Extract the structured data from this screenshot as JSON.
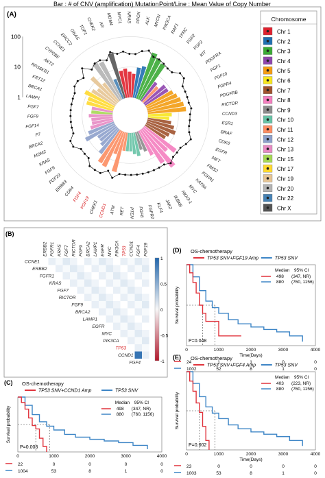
{
  "panelA": {
    "label": "(A)",
    "header_left": "Bar : # of CNV (amplification) Mutation",
    "header_right": "Point/Line : Mean Value of Copy Number",
    "y_ticks": [
      "100",
      "10",
      "1"
    ],
    "legend_title": "Chromosome",
    "legend": [
      {
        "name": "Chr 1",
        "color": "#e0212e"
      },
      {
        "name": "Chr 2",
        "color": "#1f6fb0"
      },
      {
        "name": "Chr 3",
        "color": "#3aaa35"
      },
      {
        "name": "Chr 4",
        "color": "#8e44ad"
      },
      {
        "name": "Chr 5",
        "color": "#f39c12"
      },
      {
        "name": "Chr 6",
        "color": "#f7e61e"
      },
      {
        "name": "Chr 7",
        "color": "#a0522d"
      },
      {
        "name": "Chr 8",
        "color": "#f47ebf"
      },
      {
        "name": "Chr 9",
        "color": "#8c8c8c"
      },
      {
        "name": "Chr 10",
        "color": "#66c2a5"
      },
      {
        "name": "Chr 11",
        "color": "#fc8d62"
      },
      {
        "name": "Chr 12",
        "color": "#8da0cb"
      },
      {
        "name": "Chr 13",
        "color": "#e78ac3"
      },
      {
        "name": "Chr 15",
        "color": "#a6d854"
      },
      {
        "name": "Chr 17",
        "color": "#ffd92f"
      },
      {
        "name": "Chr 19",
        "color": "#e5c494"
      },
      {
        "name": "Chr 20",
        "color": "#b3b3b3"
      },
      {
        "name": "Chr 22",
        "color": "#4682b4"
      },
      {
        "name": "Chr X",
        "color": "#555555"
      }
    ]
  },
  "chart_data": [
    {
      "type": "bar",
      "panel": "A",
      "subtype": "radial-bar-with-line",
      "bar_meaning": "# of CNV (amplification) Mutation",
      "line_meaning": "Mean Value of Copy Number",
      "radial_scale": "log",
      "radial_ticks": [
        1,
        10,
        100
      ],
      "genes": [
        {
          "gene": "AR",
          "chr": "Chr X",
          "bar": 35,
          "cn": 6.5
        },
        {
          "gene": "MDM4",
          "chr": "Chr 1",
          "bar": 8,
          "cn": 5
        },
        {
          "gene": "MYCL",
          "chr": "Chr 1",
          "bar": 9,
          "cn": 5.5
        },
        {
          "gene": "NRAS",
          "chr": "Chr 1",
          "bar": 7,
          "cn": 4.5
        },
        {
          "gene": "PPOX",
          "chr": "Chr 1",
          "bar": 6,
          "cn": 4.5
        },
        {
          "gene": "ALK",
          "chr": "Chr 2",
          "bar": 10,
          "cn": 6
        },
        {
          "gene": "MYCN",
          "chr": "Chr 2",
          "bar": 12,
          "cn": 7
        },
        {
          "gene": "PIK3CA",
          "chr": "Chr 3",
          "bar": 40,
          "cn": 5
        },
        {
          "gene": "RAF1",
          "chr": "Chr 3",
          "bar": 30,
          "cn": 5
        },
        {
          "gene": "TFRC",
          "chr": "Chr 3",
          "bar": 25,
          "cn": 4.5
        },
        {
          "gene": "FGF2",
          "chr": "Chr 4",
          "bar": 6,
          "cn": 4
        },
        {
          "gene": "FGF3",
          "chr": "Chr 11",
          "bar": 5,
          "cn": 4
        },
        {
          "gene": "KIT",
          "chr": "Chr 4",
          "bar": 8,
          "cn": 6
        },
        {
          "gene": "PDGFRA",
          "chr": "Chr 4",
          "bar": 8,
          "cn": 6
        },
        {
          "gene": "FGF1",
          "chr": "Chr 5",
          "bar": 10,
          "cn": 4
        },
        {
          "gene": "FGF10",
          "chr": "Chr 5",
          "bar": 12,
          "cn": 4
        },
        {
          "gene": "FGFR4",
          "chr": "Chr 5",
          "bar": 14,
          "cn": 4
        },
        {
          "gene": "PDGFRB",
          "chr": "Chr 5",
          "bar": 16,
          "cn": 4
        },
        {
          "gene": "RICTOR",
          "chr": "Chr 5",
          "bar": 18,
          "cn": 4.5
        },
        {
          "gene": "CCND3",
          "chr": "Chr 6",
          "bar": 6,
          "cn": 4
        },
        {
          "gene": "ESR1",
          "chr": "Chr 6",
          "bar": 5,
          "cn": 4
        },
        {
          "gene": "BRAF",
          "chr": "Chr 7",
          "bar": 6,
          "cn": 4
        },
        {
          "gene": "CDK6",
          "chr": "Chr 7",
          "bar": 8,
          "cn": 4.5
        },
        {
          "gene": "EGFR",
          "chr": "Chr 7",
          "bar": 10,
          "cn": 6
        },
        {
          "gene": "MET",
          "chr": "Chr 7",
          "bar": 7,
          "cn": 5
        },
        {
          "gene": "PMS2",
          "chr": "Chr 7",
          "bar": 6,
          "cn": 4
        },
        {
          "gene": "FGFR1",
          "chr": "Chr 8",
          "bar": 20,
          "cn": 4
        },
        {
          "gene": "KAT6A",
          "chr": "Chr 8",
          "bar": 12,
          "cn": 4
        },
        {
          "gene": "MYC",
          "chr": "Chr 8",
          "bar": 40,
          "cn": 5
        },
        {
          "gene": "NKX3-1",
          "chr": "Chr 8",
          "bar": 20,
          "cn": 4
        },
        {
          "gene": "IKBKB",
          "chr": "Chr 8",
          "bar": 8,
          "cn": 4
        },
        {
          "gene": "JAK2",
          "chr": "Chr 9",
          "bar": 5,
          "cn": 4
        },
        {
          "gene": "KLF4",
          "chr": "Chr 9",
          "bar": 4,
          "cn": 4
        },
        {
          "gene": "FGFR2",
          "chr": "Chr 10",
          "bar": 6,
          "cn": 4
        },
        {
          "gene": "FGF8",
          "chr": "Chr 10",
          "bar": 5,
          "cn": 4
        },
        {
          "gene": "PTEN",
          "chr": "Chr 10",
          "bar": 4,
          "cn": 4
        },
        {
          "gene": "RET",
          "chr": "Chr 10",
          "bar": 4,
          "cn": 4
        },
        {
          "gene": "ATM",
          "chr": "Chr 11",
          "bar": 4,
          "cn": 4
        },
        {
          "gene": "CCND1",
          "chr": "Chr 11",
          "bar": 22,
          "cn": 6
        },
        {
          "gene": "CHEK1",
          "chr": "Chr 11",
          "bar": 6,
          "cn": 4
        },
        {
          "gene": "FGF19",
          "chr": "Chr 11",
          "bar": 20,
          "cn": 6
        },
        {
          "gene": "FGF4",
          "chr": "Chr 11",
          "bar": 18,
          "cn": 6
        },
        {
          "gene": "CDK4",
          "chr": "Chr 12",
          "bar": 10,
          "cn": 6
        },
        {
          "gene": "ERBB3",
          "chr": "Chr 12",
          "bar": 6,
          "cn": 4
        },
        {
          "gene": "FGF23",
          "chr": "Chr 12",
          "bar": 5,
          "cn": 4
        },
        {
          "gene": "FGF6",
          "chr": "Chr 12",
          "bar": 5,
          "cn": 4
        },
        {
          "gene": "KRAS",
          "chr": "Chr 12",
          "bar": 12,
          "cn": 6
        },
        {
          "gene": "MDM2",
          "chr": "Chr 12",
          "bar": 8,
          "cn": 6
        },
        {
          "gene": "BRCA2",
          "chr": "Chr 13",
          "bar": 6,
          "cn": 4
        },
        {
          "gene": "F7",
          "chr": "Chr 13",
          "bar": 5,
          "cn": 4
        },
        {
          "gene": "FGF14",
          "chr": "Chr 13",
          "bar": 5,
          "cn": 4
        },
        {
          "gene": "FGF9",
          "chr": "Chr 13",
          "bar": 6,
          "cn": 4
        },
        {
          "gene": "FGF7",
          "chr": "Chr 15",
          "bar": 5,
          "cn": 4
        },
        {
          "gene": "LAMP1",
          "chr": "Chr 13",
          "bar": 5,
          "cn": 4
        },
        {
          "gene": "BRCA1",
          "chr": "Chr 17",
          "bar": 8,
          "cn": 4
        },
        {
          "gene": "KRT12",
          "chr": "Chr 17",
          "bar": 8,
          "cn": 4
        },
        {
          "gene": "RPS6KB1",
          "chr": "Chr 17",
          "bar": 12,
          "cn": 5
        },
        {
          "gene": "AKT2",
          "chr": "Chr 19",
          "bar": 8,
          "cn": 5
        },
        {
          "gene": "CYP2B6",
          "chr": "Chr 19",
          "bar": 6,
          "cn": 4
        },
        {
          "gene": "CCNE1",
          "chr": "Chr 19",
          "bar": 15,
          "cn": 7
        },
        {
          "gene": "ERCC2",
          "chr": "Chr 19",
          "bar": 6,
          "cn": 4
        },
        {
          "gene": "GNAS",
          "chr": "Chr 20",
          "bar": 30,
          "cn": 5
        },
        {
          "gene": "TOP1",
          "chr": "Chr 20",
          "bar": 25,
          "cn": 5
        },
        {
          "gene": "CHEK2",
          "chr": "Chr 22",
          "bar": 5,
          "cn": 4
        }
      ],
      "highlighted_genes": [
        "FGF4",
        "FGF19",
        "CCND1"
      ]
    },
    {
      "type": "heatmap",
      "panel": "B",
      "label": "(B)",
      "rows": [
        "CCNE1",
        "ERBB2",
        "FGFR1",
        "KRAS",
        "FGF7",
        "RICTOR",
        "FGF9",
        "BRCA2",
        "LAMP1",
        "EGFR",
        "MYC",
        "PIK3CA",
        "TP53",
        "CCND1",
        "FGF4"
      ],
      "columns": [
        "ERBB2",
        "FGFR1",
        "KRAS",
        "FGF7",
        "RICTOR",
        "FGF9",
        "BRCA2",
        "LAMP1",
        "EGFR",
        "MYC",
        "PIK3CA",
        "TP53",
        "CCND1",
        "FGF4",
        "FGF19"
      ],
      "highlight": "TP53",
      "colorbar_ticks": [
        "1",
        "0.5",
        "0",
        "-0.5",
        "-1"
      ],
      "strong_cells": [
        {
          "row": "BRCA2",
          "col": "FGF9",
          "value": 0.75
        },
        {
          "row": "FGF9",
          "col": "FGF9",
          "value": 0.5
        },
        {
          "row": "FGF4",
          "col": "CCND1",
          "value": 1.0
        },
        {
          "row": "CCND1",
          "col": "FGF4",
          "value": 0.9
        },
        {
          "row": "TP53",
          "col": "TP53",
          "value": -0.45
        }
      ]
    },
    {
      "type": "line",
      "panel": "C",
      "label": "(C)",
      "title": "OS-chemotherapy",
      "ylabel": "Survival probability",
      "xlabel": "",
      "x_ticks": [
        "0",
        "1000",
        "2000",
        "3000",
        "4000"
      ],
      "ylim": [
        0,
        1
      ],
      "legend_label_a": "TP53 SNV+CCND1 Amp",
      "legend_label_b": "TP53 SNV",
      "median_header": "Median",
      "ci_header": "95% CI",
      "median_a": "498",
      "ci_a": "(347, NR)",
      "median_b": "880",
      "ci_b": "(760, 1156)",
      "pvalue": "P=0.003",
      "risk_a": [
        "22",
        "0",
        "0",
        "0",
        "0"
      ],
      "risk_b": [
        "1004",
        "53",
        "8",
        "1",
        "0"
      ],
      "series": [
        {
          "name": "TP53 SNV+CCND1 Amp",
          "color": "#e0333c",
          "x": [
            0,
            100,
            200,
            300,
            400,
            500,
            600,
            700,
            800
          ],
          "y": [
            1.0,
            0.9,
            0.78,
            0.62,
            0.48,
            0.42,
            0.25,
            0.1,
            0.0
          ]
        },
        {
          "name": "TP53 SNV",
          "color": "#3d85c6",
          "x": [
            0,
            200,
            400,
            600,
            800,
            1000,
            1300,
            1600,
            2000,
            2400,
            2800,
            3200,
            3600
          ],
          "y": [
            1.0,
            0.85,
            0.68,
            0.55,
            0.47,
            0.4,
            0.32,
            0.27,
            0.23,
            0.2,
            0.17,
            0.12,
            0.05
          ]
        }
      ]
    },
    {
      "type": "line",
      "panel": "D",
      "label": "(D)",
      "title": "OS-chemotherapy",
      "ylabel": "Survival probability",
      "xlabel": "Time(Days)",
      "x_ticks": [
        "0",
        "1000",
        "2000",
        "3000",
        "4000"
      ],
      "ylim": [
        0,
        1
      ],
      "legend_label_a": "TP53 SNV+FGF19 Amp",
      "legend_label_b": "TP53 SNV",
      "median_header": "Median",
      "ci_header": "95% CI",
      "median_a": "498",
      "ci_a": "(347, NR)",
      "median_b": "880",
      "ci_b": "(760, 1156)",
      "pvalue": "P=0.048",
      "risk_a": [
        "24",
        "1",
        "1",
        "0",
        "0"
      ],
      "risk_b": [
        "1002",
        "52",
        "8",
        "1",
        "0"
      ],
      "series": [
        {
          "name": "TP53 SNV+FGF19 Amp",
          "color": "#e0333c",
          "x": [
            0,
            100,
            200,
            300,
            400,
            500,
            600,
            1000,
            1300,
            1700
          ],
          "y": [
            1.0,
            0.9,
            0.78,
            0.65,
            0.5,
            0.4,
            0.3,
            0.12,
            0.12,
            0.12
          ]
        },
        {
          "name": "TP53 SNV",
          "color": "#3d85c6",
          "x": [
            0,
            200,
            400,
            600,
            800,
            1000,
            1300,
            1600,
            2000,
            2400,
            2800,
            3200,
            3600
          ],
          "y": [
            1.0,
            0.85,
            0.68,
            0.55,
            0.47,
            0.4,
            0.32,
            0.27,
            0.23,
            0.2,
            0.17,
            0.12,
            0.05
          ]
        }
      ]
    },
    {
      "type": "line",
      "panel": "E",
      "label": "(E)",
      "title": "OS-chemotherapy",
      "ylabel": "Survival probability",
      "xlabel": "Time(Days)",
      "x_ticks": [
        "0",
        "1000",
        "2000",
        "3000",
        "4000"
      ],
      "ylim": [
        0,
        1
      ],
      "legend_label_a": "TP53 SNV+FGF4 Amp",
      "legend_label_b": "TP53 SNV",
      "median_header": "Median",
      "ci_header": "95% CI",
      "median_a": "403",
      "ci_a": "(223, NR)",
      "median_b": "880",
      "ci_b": "(760, 1156)",
      "pvalue": "P=0.002",
      "risk_a": [
        "23",
        "0",
        "0",
        "0",
        "0"
      ],
      "risk_b": [
        "1003",
        "53",
        "8",
        "1",
        "0"
      ],
      "series": [
        {
          "name": "TP53 SNV+FGF4 Amp",
          "color": "#e0333c",
          "x": [
            0,
            100,
            200,
            300,
            400,
            500,
            600,
            700
          ],
          "y": [
            1.0,
            0.88,
            0.75,
            0.6,
            0.48,
            0.3,
            0.12,
            0.0
          ]
        },
        {
          "name": "TP53 SNV",
          "color": "#3d85c6",
          "x": [
            0,
            200,
            400,
            600,
            800,
            1000,
            1300,
            1600,
            2000,
            2400,
            2800,
            3200,
            3600
          ],
          "y": [
            1.0,
            0.85,
            0.68,
            0.55,
            0.47,
            0.4,
            0.32,
            0.27,
            0.23,
            0.2,
            0.17,
            0.12,
            0.05
          ]
        }
      ]
    }
  ]
}
